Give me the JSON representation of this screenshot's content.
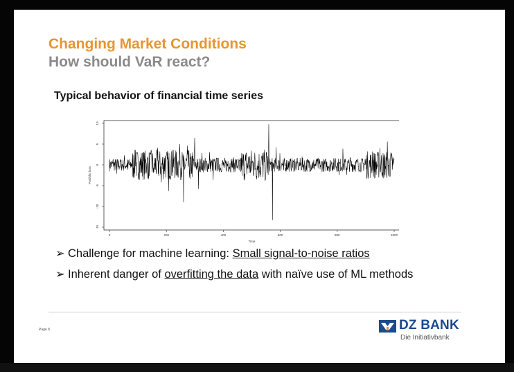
{
  "header": {
    "title": "Changing Market Conditions",
    "subtitle": "How should VaR react?"
  },
  "section_heading": "Typical behavior of financial time series",
  "chart_data": {
    "type": "line",
    "xlabel": "Time",
    "ylabel": "Portfolio loss",
    "xlim": [
      0,
      1000
    ],
    "ylim": [
      -15,
      10
    ],
    "x_ticks": [
      "0",
      "200",
      "400",
      "600",
      "800",
      "1000"
    ],
    "y_ticks": [
      "10",
      "5",
      "0",
      "-5",
      "-10",
      "-15"
    ],
    "grid": false,
    "n_points": 1000,
    "series": [
      {
        "values": [
          0.0,
          1.4,
          -2.1,
          0.9,
          2.3,
          -1.2,
          0.4,
          3.6,
          -3.1,
          1.0,
          -0.6,
          2.4,
          -1.7,
          4.1,
          -4.2,
          2.2,
          8.6,
          -6.3,
          3.5,
          -2.5,
          5.0,
          -9.0,
          4.6,
          -3.4,
          6.5,
          -5.8,
          2.9,
          -1.4,
          3.1,
          -3.6,
          1.6,
          -1.1,
          1.2,
          -0.8,
          0.9,
          -0.6,
          1.4,
          -1.3,
          0.7,
          -0.4,
          0.0,
          0.6,
          -1.3,
          1.8,
          -3.8,
          9.8,
          -13.3,
          4.2,
          -2.3,
          2.8,
          -1.3,
          1.1,
          -0.9,
          1.4,
          -1.1,
          2.0,
          -1.6,
          1.0,
          -0.8,
          0.6,
          -0.5,
          1.1,
          -0.9,
          0.8,
          -1.0,
          1.6,
          -2.5,
          3.9,
          -2.4,
          1.8,
          -1.3,
          1.2,
          -0.6,
          1.4,
          -1.6,
          3.2,
          -2.4,
          4.0,
          -3.2,
          5.6,
          -4.3,
          1.0
        ]
      }
    ]
  },
  "bullets": [
    {
      "prefix": "Challenge for machine learning: ",
      "link": "Small signal-to-noise ratios",
      "suffix": ""
    },
    {
      "prefix": "Inherent danger of ",
      "link": "overfitting the data",
      "suffix": " with naïve use of ML methods"
    }
  ],
  "footer": {
    "page_label": "Page 8",
    "brand_name": "DZ BANK",
    "brand_tagline": "Die Initiativbank"
  },
  "colors": {
    "title": "#e8952f",
    "subtitle": "#8a8a8a",
    "brand": "#1b4a8e",
    "line": "#000000"
  }
}
